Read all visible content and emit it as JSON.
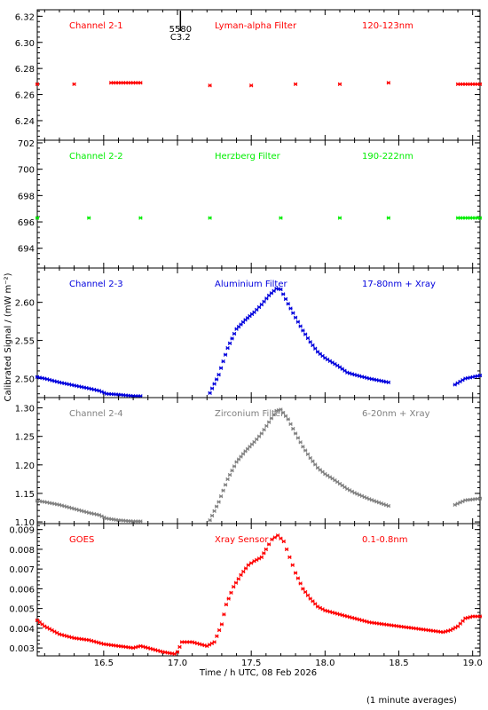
{
  "chart_data": {
    "type": "scatter",
    "xlabel": "Time / h UTC, 08 Feb 2026",
    "ylabel": "Calibrated Signal / (mW m⁻²)",
    "footnote": "(1 minute averages)",
    "xlim": [
      16.05,
      19.05
    ],
    "xticks": [
      16.5,
      17.0,
      17.5,
      18.0,
      18.5,
      19.0
    ],
    "xtick_labels": [
      "16.5",
      "17.0",
      "17.5",
      "18.0",
      "18.5",
      "19.0"
    ],
    "event_marker": {
      "x": 17.02,
      "label_top": "5580",
      "label_bottom": "C3.2"
    },
    "panels": [
      {
        "channel": "Channel 2-1",
        "filter": "Lyman-alpha Filter",
        "band": "120-123nm",
        "color": "#ff0000",
        "ylim": [
          6.225,
          6.325
        ],
        "yticks": [
          6.24,
          6.26,
          6.28,
          6.3,
          6.32
        ],
        "ytick_labels": [
          "6.24",
          "6.26",
          "6.28",
          "6.30",
          "6.32"
        ],
        "points": [
          [
            16.05,
            6.268
          ],
          [
            16.3,
            6.268
          ],
          [
            16.55,
            6.269
          ],
          [
            16.75,
            6.269
          ],
          [
            17.22,
            6.267
          ],
          [
            17.5,
            6.267
          ],
          [
            17.8,
            6.268
          ],
          [
            18.1,
            6.268
          ],
          [
            18.43,
            6.269
          ],
          [
            18.9,
            6.268
          ],
          [
            19.05,
            6.268
          ]
        ]
      },
      {
        "channel": "Channel 2-2",
        "filter": "Herzberg Filter",
        "band": "190-222nm",
        "color": "#00ee00",
        "ylim": [
          692.5,
          702.2
        ],
        "yticks": [
          694,
          696,
          698,
          700,
          702
        ],
        "ytick_labels": [
          "694",
          "696",
          "698",
          "700",
          "702"
        ],
        "points": [
          [
            16.05,
            696.3
          ],
          [
            16.4,
            696.3
          ],
          [
            16.75,
            696.3
          ],
          [
            17.22,
            696.3
          ],
          [
            17.7,
            696.3
          ],
          [
            18.1,
            696.3
          ],
          [
            18.43,
            696.3
          ],
          [
            18.9,
            696.3
          ],
          [
            19.05,
            696.3
          ]
        ]
      },
      {
        "channel": "Channel 2-3",
        "filter": "Aluminium Filter",
        "band": "17-80nm + Xray",
        "color": "#0000dd",
        "ylim": [
          2.475,
          2.645
        ],
        "yticks": [
          2.5,
          2.55,
          2.6
        ],
        "ytick_labels": [
          "2.50",
          "2.55",
          "2.60"
        ],
        "points": [
          [
            16.05,
            2.502
          ],
          [
            16.1,
            2.5
          ],
          [
            16.2,
            2.495
          ],
          [
            16.3,
            2.491
          ],
          [
            16.4,
            2.487
          ],
          [
            16.47,
            2.484
          ],
          [
            16.52,
            2.48
          ],
          [
            16.6,
            2.479
          ],
          [
            16.7,
            2.477
          ],
          [
            16.75,
            2.477
          ],
          [
            17.22,
            2.481
          ],
          [
            17.28,
            2.505
          ],
          [
            17.34,
            2.54
          ],
          [
            17.4,
            2.565
          ],
          [
            17.46,
            2.577
          ],
          [
            17.52,
            2.587
          ],
          [
            17.57,
            2.597
          ],
          [
            17.62,
            2.609
          ],
          [
            17.67,
            2.618
          ],
          [
            17.7,
            2.617
          ],
          [
            17.75,
            2.598
          ],
          [
            17.8,
            2.58
          ],
          [
            17.85,
            2.563
          ],
          [
            17.9,
            2.548
          ],
          [
            17.95,
            2.535
          ],
          [
            18.0,
            2.527
          ],
          [
            18.05,
            2.521
          ],
          [
            18.1,
            2.515
          ],
          [
            18.15,
            2.508
          ],
          [
            18.2,
            2.505
          ],
          [
            18.3,
            2.5
          ],
          [
            18.43,
            2.495
          ],
          [
            18.88,
            2.492
          ],
          [
            18.95,
            2.5
          ],
          [
            19.05,
            2.504
          ]
        ]
      },
      {
        "channel": "Channel 2-4",
        "filter": "Zirconium Filter",
        "band": "6-20nm + Xray",
        "color": "#808080",
        "ylim": [
          1.097,
          1.318
        ],
        "yticks": [
          1.1,
          1.15,
          1.2,
          1.25,
          1.3
        ],
        "ytick_labels": [
          "1.10",
          "1.15",
          "1.20",
          "1.25",
          "1.30"
        ],
        "points": [
          [
            16.05,
            1.137
          ],
          [
            16.1,
            1.135
          ],
          [
            16.2,
            1.13
          ],
          [
            16.3,
            1.123
          ],
          [
            16.4,
            1.116
          ],
          [
            16.47,
            1.112
          ],
          [
            16.52,
            1.106
          ],
          [
            16.6,
            1.103
          ],
          [
            16.7,
            1.101
          ],
          [
            16.75,
            1.101
          ],
          [
            17.22,
            1.103
          ],
          [
            17.28,
            1.135
          ],
          [
            17.34,
            1.175
          ],
          [
            17.4,
            1.205
          ],
          [
            17.46,
            1.224
          ],
          [
            17.52,
            1.24
          ],
          [
            17.57,
            1.255
          ],
          [
            17.62,
            1.275
          ],
          [
            17.67,
            1.295
          ],
          [
            17.7,
            1.297
          ],
          [
            17.75,
            1.28
          ],
          [
            17.8,
            1.255
          ],
          [
            17.85,
            1.232
          ],
          [
            17.9,
            1.212
          ],
          [
            17.95,
            1.195
          ],
          [
            18.0,
            1.184
          ],
          [
            18.05,
            1.176
          ],
          [
            18.1,
            1.167
          ],
          [
            18.15,
            1.158
          ],
          [
            18.2,
            1.151
          ],
          [
            18.3,
            1.14
          ],
          [
            18.43,
            1.128
          ],
          [
            18.88,
            1.13
          ],
          [
            18.95,
            1.138
          ],
          [
            19.05,
            1.141
          ]
        ]
      },
      {
        "channel": "GOES",
        "filter": "Xray Sensor",
        "band": "0.1-0.8nm",
        "color": "#ff0000",
        "ylim": [
          0.0026,
          0.0093
        ],
        "yticks": [
          0.003,
          0.004,
          0.005,
          0.006,
          0.007,
          0.008,
          0.009
        ],
        "ytick_labels": [
          "0.003",
          "0.004",
          "0.005",
          "0.006",
          "0.007",
          "0.008",
          "0.009"
        ],
        "points": [
          [
            16.05,
            0.0044
          ],
          [
            16.1,
            0.0041
          ],
          [
            16.15,
            0.0039
          ],
          [
            16.2,
            0.0037
          ],
          [
            16.3,
            0.0035
          ],
          [
            16.4,
            0.0034
          ],
          [
            16.5,
            0.0032
          ],
          [
            16.6,
            0.0031
          ],
          [
            16.7,
            0.003
          ],
          [
            16.75,
            0.0031
          ],
          [
            16.8,
            0.003
          ],
          [
            16.9,
            0.0028
          ],
          [
            16.98,
            0.0027
          ],
          [
            17.0,
            0.0028
          ],
          [
            17.03,
            0.0033
          ],
          [
            17.1,
            0.0033
          ],
          [
            17.2,
            0.0031
          ],
          [
            17.25,
            0.0033
          ],
          [
            17.3,
            0.0042
          ],
          [
            17.33,
            0.0052
          ],
          [
            17.38,
            0.0061
          ],
          [
            17.43,
            0.0067
          ],
          [
            17.48,
            0.0072
          ],
          [
            17.52,
            0.0074
          ],
          [
            17.57,
            0.0076
          ],
          [
            17.6,
            0.008
          ],
          [
            17.64,
            0.0085
          ],
          [
            17.68,
            0.0087
          ],
          [
            17.72,
            0.0084
          ],
          [
            17.76,
            0.0076
          ],
          [
            17.8,
            0.0068
          ],
          [
            17.85,
            0.006
          ],
          [
            17.9,
            0.0055
          ],
          [
            17.95,
            0.0051
          ],
          [
            18.0,
            0.0049
          ],
          [
            18.1,
            0.0047
          ],
          [
            18.2,
            0.0045
          ],
          [
            18.3,
            0.0043
          ],
          [
            18.4,
            0.0042
          ],
          [
            18.5,
            0.0041
          ],
          [
            18.6,
            0.004
          ],
          [
            18.7,
            0.0039
          ],
          [
            18.8,
            0.0038
          ],
          [
            18.85,
            0.0039
          ],
          [
            18.9,
            0.0041
          ],
          [
            18.95,
            0.0045
          ],
          [
            19.0,
            0.0046
          ],
          [
            19.05,
            0.0046
          ]
        ]
      }
    ]
  }
}
